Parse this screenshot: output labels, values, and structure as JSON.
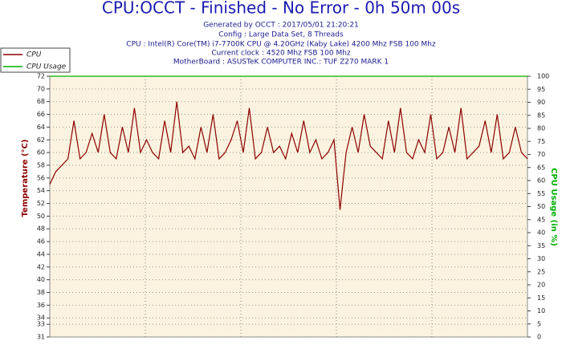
{
  "chart_data": {
    "type": "line",
    "title": "CPU:OCCT - Finished - No Error - 0h 50m 00s",
    "subtitle": [
      "Generated by OCCT : 2017/05/01 21:20:21",
      "Config : Large Data Set, 8 Threads",
      "CPU : Intel(R) Core(TM) i7-7700K CPU @ 4.20GHz (Kaby Lake) 4200 Mhz FSB 100 Mhz",
      "Current clock : 4520 Mhz FSB 100 Mhz",
      "MotherBoard : ASUSTeK COMPUTER INC.: TUF Z270 MARK 1"
    ],
    "y_label": "Temperature (°C)",
    "y2_label": "CPU Usage (in %)",
    "ylim": [
      31,
      72
    ],
    "yticks": [
      31,
      33,
      34,
      36,
      38,
      40,
      42,
      44,
      46,
      48,
      50,
      52,
      54,
      56,
      58,
      60,
      62,
      64,
      66,
      68,
      70,
      72
    ],
    "y2lim": [
      0,
      100
    ],
    "y2ticks": [
      0,
      5,
      10,
      15,
      20,
      25,
      30,
      35,
      40,
      45,
      50,
      55,
      60,
      65,
      70,
      75,
      80,
      85,
      90,
      95,
      100
    ],
    "grid": true,
    "series": [
      {
        "name": "CPU",
        "color": "#8b0000",
        "values": [
          55,
          57,
          58,
          59,
          65,
          59,
          60,
          63,
          60,
          66,
          60,
          59,
          64,
          60,
          67,
          60,
          62,
          60,
          59,
          65,
          60,
          68,
          60,
          61,
          59,
          64,
          60,
          66,
          59,
          60,
          62,
          65,
          60,
          67,
          59,
          60,
          64,
          60,
          61,
          59,
          63,
          60,
          65,
          60,
          62,
          59,
          60,
          62,
          51,
          60,
          64,
          60,
          66,
          61,
          60,
          59,
          65,
          60,
          67,
          60,
          59,
          62,
          60,
          66,
          59,
          60,
          64,
          60,
          67,
          59,
          60,
          61,
          65,
          60,
          66,
          59,
          60,
          64,
          60,
          59
        ]
      },
      {
        "name": "CPU Usage",
        "color": "#00b000",
        "axis": "y2",
        "values": [
          100,
          100,
          100,
          100,
          100,
          100,
          100,
          100,
          100,
          100,
          100,
          100,
          100,
          100,
          100,
          100,
          100,
          100,
          100,
          100,
          100,
          100,
          100,
          100,
          100,
          100,
          100,
          100,
          100,
          100,
          100,
          100,
          100,
          100,
          100,
          100,
          100,
          100,
          100,
          100,
          100,
          100,
          100,
          100,
          100,
          100,
          100,
          100,
          100,
          100,
          100,
          100,
          100,
          100,
          100,
          100,
          100,
          100,
          100,
          100,
          100,
          100,
          100,
          100,
          100,
          100,
          100,
          100,
          100,
          100,
          100,
          100,
          100,
          100,
          100,
          100,
          100,
          100,
          100,
          100
        ]
      }
    ]
  }
}
